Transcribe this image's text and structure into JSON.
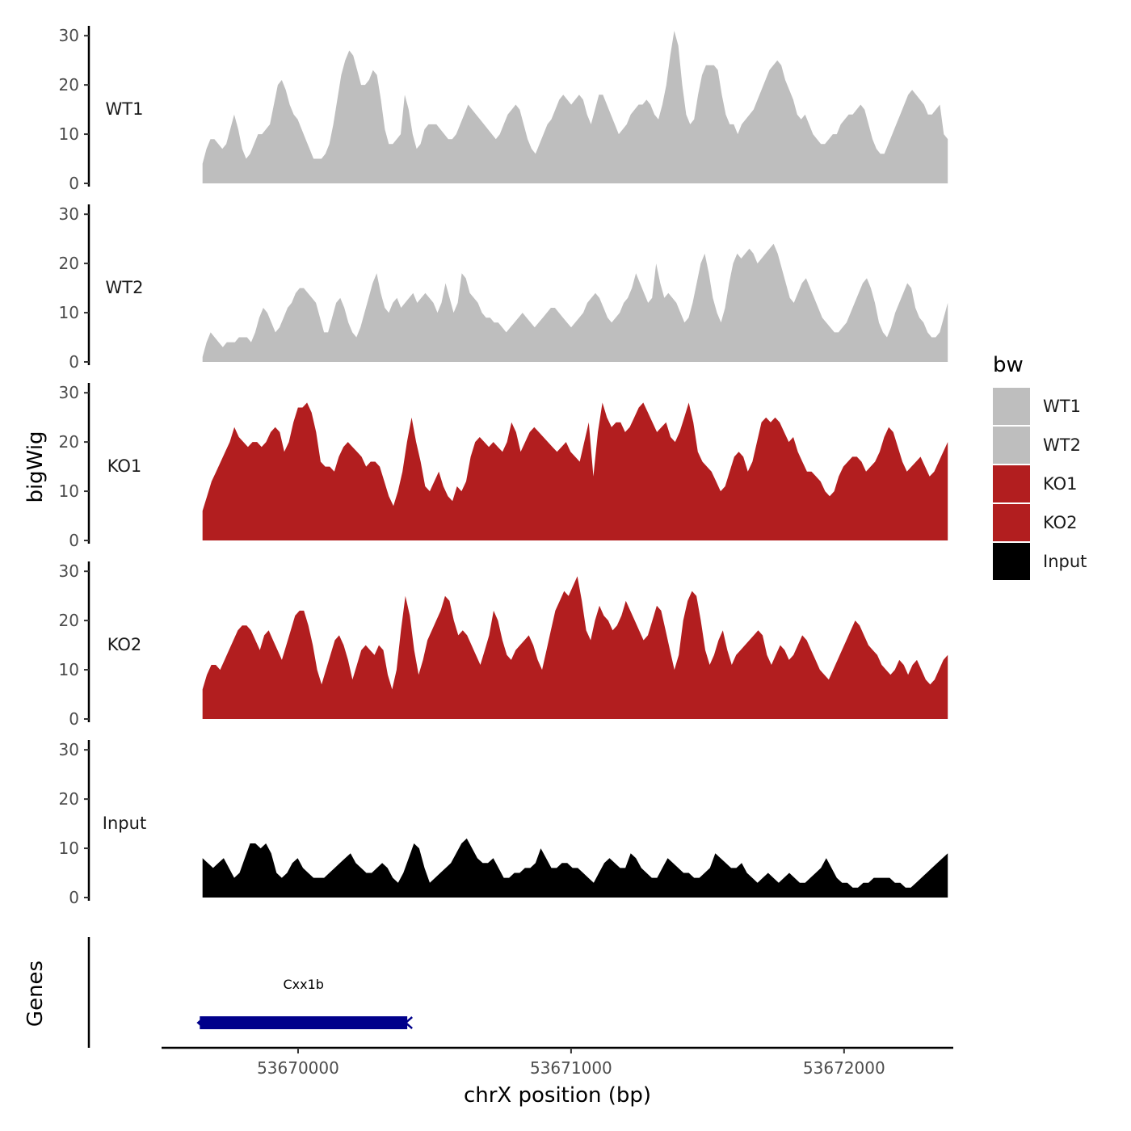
{
  "chart_data": {
    "type": "area",
    "xlabel": "chrX position (bp)",
    "ylabel": "bigWig",
    "genes_label": "Genes",
    "legend_title": "bw",
    "legend_position": "right",
    "xlim": [
      53669500,
      53672400
    ],
    "ylim": [
      0,
      32
    ],
    "x_ticks": [
      53670000,
      53671000,
      53672000
    ],
    "x_tick_labels": [
      "53670000",
      "53671000",
      "53672000"
    ],
    "y_ticks": [
      0,
      10,
      20,
      30
    ],
    "y_tick_labels": [
      "0",
      "10",
      "20",
      "30"
    ],
    "grid": false,
    "legend": [
      {
        "label": "WT1",
        "color": "#bebebe"
      },
      {
        "label": "WT2",
        "color": "#bebebe"
      },
      {
        "label": "KO1",
        "color": "#b21e1f"
      },
      {
        "label": "KO2",
        "color": "#b21e1f"
      },
      {
        "label": "Input",
        "color": "#000000"
      }
    ],
    "x_range": [
      53669650,
      53672380
    ],
    "series": [
      {
        "name": "WT1",
        "color": "#bebebe",
        "values": [
          4,
          7,
          9,
          9,
          8,
          7,
          8,
          11,
          14,
          11,
          7,
          5,
          6,
          8,
          10,
          10,
          11,
          12,
          16,
          20,
          21,
          19,
          16,
          14,
          13,
          11,
          9,
          7,
          5,
          5,
          5,
          6,
          8,
          12,
          17,
          22,
          25,
          27,
          26,
          23,
          20,
          20,
          21,
          23,
          22,
          17,
          11,
          8,
          8,
          9,
          10,
          18,
          15,
          10,
          7,
          8,
          11,
          12,
          12,
          12,
          11,
          10,
          9,
          9,
          10,
          12,
          14,
          16,
          15,
          14,
          13,
          12,
          11,
          10,
          9,
          10,
          12,
          14,
          15,
          16,
          15,
          12,
          9,
          7,
          6,
          8,
          10,
          12,
          13,
          15,
          17,
          18,
          17,
          16,
          17,
          18,
          17,
          14,
          12,
          15,
          18,
          18,
          16,
          14,
          12,
          10,
          11,
          12,
          14,
          15,
          16,
          16,
          17,
          16,
          14,
          13,
          16,
          20,
          26,
          31,
          28,
          20,
          14,
          12,
          13,
          18,
          22,
          24,
          24,
          24,
          23,
          18,
          14,
          12,
          12,
          10,
          12,
          13,
          14,
          15,
          17,
          19,
          21,
          23,
          24,
          25,
          24,
          21,
          19,
          17,
          14,
          13,
          14,
          12,
          10,
          9,
          8,
          8,
          9,
          10,
          10,
          12,
          13,
          14,
          14,
          15,
          16,
          15,
          12,
          9,
          7,
          6,
          6,
          8,
          10,
          12,
          14,
          16,
          18,
          19,
          18,
          17,
          16,
          14,
          14,
          15,
          16,
          10,
          9
        ]
      },
      {
        "name": "WT2",
        "color": "#bebebe",
        "values": [
          1,
          4,
          6,
          5,
          4,
          3,
          4,
          4,
          4,
          5,
          5,
          5,
          4,
          6,
          9,
          11,
          10,
          8,
          6,
          7,
          9,
          11,
          12,
          14,
          15,
          15,
          14,
          13,
          12,
          9,
          6,
          6,
          9,
          12,
          13,
          11,
          8,
          6,
          5,
          7,
          10,
          13,
          16,
          18,
          14,
          11,
          10,
          12,
          13,
          11,
          12,
          13,
          14,
          12,
          13,
          14,
          13,
          12,
          10,
          12,
          16,
          13,
          10,
          12,
          18,
          17,
          14,
          13,
          12,
          10,
          9,
          9,
          8,
          8,
          7,
          6,
          7,
          8,
          9,
          10,
          9,
          8,
          7,
          8,
          9,
          10,
          11,
          11,
          10,
          9,
          8,
          7,
          8,
          9,
          10,
          12,
          13,
          14,
          13,
          11,
          9,
          8,
          9,
          10,
          12,
          13,
          15,
          18,
          16,
          14,
          12,
          13,
          20,
          16,
          13,
          14,
          13,
          12,
          10,
          8,
          9,
          12,
          16,
          20,
          22,
          18,
          13,
          10,
          8,
          11,
          16,
          20,
          22,
          21,
          22,
          23,
          22,
          20,
          21,
          22,
          23,
          24,
          22,
          19,
          16,
          13,
          12,
          14,
          16,
          17,
          15,
          13,
          11,
          9,
          8,
          7,
          6,
          6,
          7,
          8,
          10,
          12,
          14,
          16,
          17,
          15,
          12,
          8,
          6,
          5,
          7,
          10,
          12,
          14,
          16,
          15,
          11,
          9,
          8,
          6,
          5,
          5,
          6,
          9,
          12
        ]
      },
      {
        "name": "KO1",
        "color": "#b21e1f",
        "values": [
          6,
          9,
          12,
          14,
          16,
          18,
          20,
          23,
          21,
          20,
          19,
          20,
          20,
          19,
          20,
          22,
          23,
          22,
          18,
          20,
          24,
          27,
          27,
          28,
          26,
          22,
          16,
          15,
          15,
          14,
          17,
          19,
          20,
          19,
          18,
          17,
          15,
          16,
          16,
          15,
          12,
          9,
          7,
          10,
          14,
          20,
          25,
          20,
          16,
          11,
          10,
          12,
          14,
          11,
          9,
          8,
          11,
          10,
          12,
          17,
          20,
          21,
          20,
          19,
          20,
          19,
          18,
          20,
          24,
          22,
          18,
          20,
          22,
          23,
          22,
          21,
          20,
          19,
          18,
          19,
          20,
          18,
          17,
          16,
          20,
          24,
          13,
          22,
          28,
          25,
          23,
          24,
          24,
          22,
          23,
          25,
          27,
          28,
          26,
          24,
          22,
          23,
          24,
          21,
          20,
          22,
          25,
          28,
          24,
          18,
          16,
          15,
          14,
          12,
          10,
          11,
          14,
          17,
          18,
          17,
          14,
          16,
          20,
          24,
          25,
          24,
          25,
          24,
          22,
          20,
          21,
          18,
          16,
          14,
          14,
          13,
          12,
          10,
          9,
          10,
          13,
          15,
          16,
          17,
          17,
          16,
          14,
          15,
          16,
          18,
          21,
          23,
          22,
          19,
          16,
          14,
          15,
          16,
          17,
          15,
          13,
          14,
          16,
          18,
          20
        ]
      },
      {
        "name": "KO2",
        "color": "#b21e1f",
        "values": [
          6,
          9,
          11,
          11,
          10,
          12,
          14,
          16,
          18,
          19,
          19,
          18,
          16,
          14,
          17,
          18,
          16,
          14,
          12,
          15,
          18,
          21,
          22,
          22,
          19,
          15,
          10,
          7,
          10,
          13,
          16,
          17,
          15,
          12,
          8,
          11,
          14,
          15,
          14,
          13,
          15,
          14,
          9,
          6,
          10,
          18,
          25,
          21,
          14,
          9,
          12,
          16,
          18,
          20,
          22,
          25,
          24,
          20,
          17,
          18,
          17,
          15,
          13,
          11,
          14,
          17,
          22,
          20,
          16,
          13,
          12,
          14,
          15,
          16,
          17,
          15,
          12,
          10,
          14,
          18,
          22,
          24,
          26,
          25,
          27,
          29,
          24,
          18,
          16,
          20,
          23,
          21,
          20,
          18,
          19,
          21,
          24,
          22,
          20,
          18,
          16,
          17,
          20,
          23,
          22,
          18,
          14,
          10,
          13,
          20,
          24,
          26,
          25,
          20,
          14,
          11,
          13,
          16,
          18,
          14,
          11,
          13,
          14,
          15,
          16,
          17,
          18,
          17,
          13,
          11,
          13,
          15,
          14,
          12,
          13,
          15,
          17,
          16,
          14,
          12,
          10,
          9,
          8,
          10,
          12,
          14,
          16,
          18,
          20,
          19,
          17,
          15,
          14,
          13,
          11,
          10,
          9,
          10,
          12,
          11,
          9,
          11,
          12,
          10,
          8,
          7,
          8,
          10,
          12,
          13
        ]
      },
      {
        "name": "Input",
        "color": "#000000",
        "values": [
          8,
          7,
          6,
          7,
          8,
          6,
          4,
          5,
          8,
          11,
          11,
          10,
          11,
          9,
          5,
          4,
          5,
          7,
          8,
          6,
          5,
          4,
          4,
          4,
          5,
          6,
          7,
          8,
          9,
          7,
          6,
          5,
          5,
          6,
          7,
          6,
          4,
          3,
          5,
          8,
          11,
          10,
          6,
          3,
          4,
          5,
          6,
          7,
          9,
          11,
          12,
          10,
          8,
          7,
          7,
          8,
          6,
          4,
          4,
          5,
          5,
          6,
          6,
          7,
          10,
          8,
          6,
          6,
          7,
          7,
          6,
          6,
          5,
          4,
          3,
          5,
          7,
          8,
          7,
          6,
          6,
          9,
          8,
          6,
          5,
          4,
          4,
          6,
          8,
          7,
          6,
          5,
          5,
          4,
          4,
          5,
          6,
          9,
          8,
          7,
          6,
          6,
          7,
          5,
          4,
          3,
          4,
          5,
          4,
          3,
          4,
          5,
          4,
          3,
          3,
          4,
          5,
          6,
          8,
          6,
          4,
          3,
          3,
          2,
          2,
          3,
          3,
          4,
          4,
          4,
          4,
          3,
          3,
          2,
          2,
          3,
          4,
          5,
          6,
          7,
          8,
          9
        ]
      }
    ],
    "genes": [
      {
        "name": "Cxx1b",
        "start": 53669640,
        "end": 53670400,
        "strand": "-",
        "color": "#00008b"
      }
    ]
  }
}
